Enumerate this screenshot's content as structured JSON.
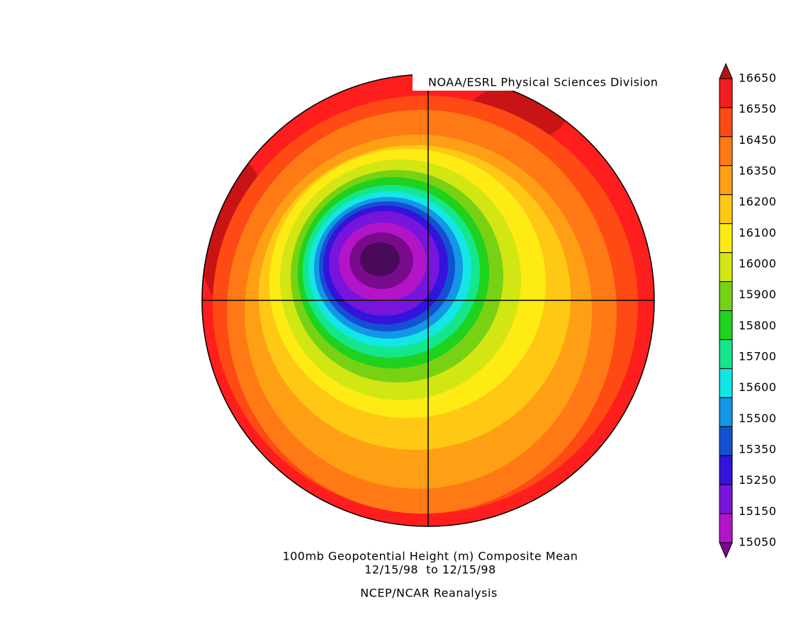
{
  "credit": "NOAA/ESRL Physical Sciences Division",
  "title": "100mb Geopotential Height (m) Composite Mean",
  "date_range": "12/15/98  to 12/15/98",
  "source": "NCEP/NCAR Reanalysis",
  "colorbar": {
    "labels": [
      16650,
      16550,
      16450,
      16350,
      16200,
      16100,
      16000,
      15900,
      15800,
      15700,
      15600,
      15500,
      15350,
      15250,
      15150,
      15050
    ],
    "colors": [
      "#b41414",
      "#f01e1e",
      "#ff4a14",
      "#ff7a14",
      "#ffa014",
      "#ffc814",
      "#ffeb14",
      "#d2e614",
      "#78d214",
      "#1ed21e",
      "#14e68c",
      "#14e6e6",
      "#1496e6",
      "#1450d2",
      "#3214dc",
      "#7814dc",
      "#b414c8",
      "#7a0a8c"
    ]
  }
}
